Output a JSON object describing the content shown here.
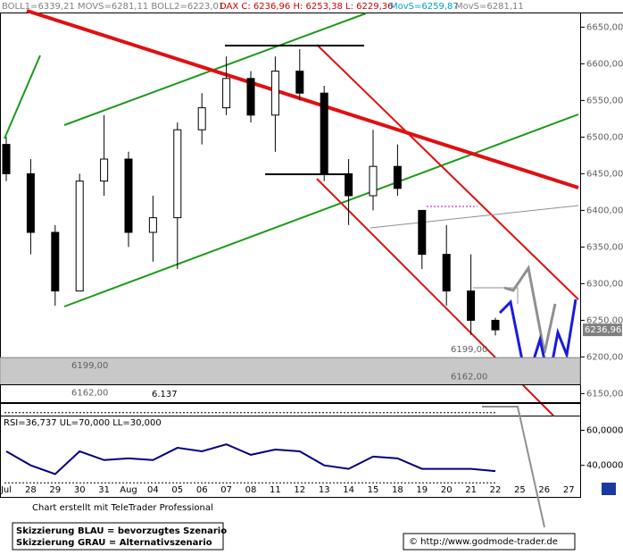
{
  "header": {
    "boll": "BOLL1=6339,21 MOVS=6281,11 BOLL2=6223,01",
    "dax": "DAX C: 6236,96 H: 6253,38 L: 6229,36",
    "movs1": "MovS=6259,87",
    "movs2": "MovS=6281,11"
  },
  "chart_data": [
    {
      "type": "candlestick",
      "categories": [
        "Jul",
        "28",
        "29",
        "30",
        "31",
        "Aug",
        "04",
        "05",
        "06",
        "07",
        "08",
        "11",
        "12",
        "13",
        "14",
        "15",
        "18",
        "19",
        "20",
        "21",
        "22",
        "25",
        "26",
        "27"
      ],
      "open": [
        6490,
        6450,
        6370,
        6290,
        6440,
        6470,
        6370,
        6390,
        6510,
        6540,
        6580,
        6530,
        6590,
        6560,
        6450,
        6420,
        6460,
        6400,
        6340,
        6290,
        6250,
        null,
        null,
        null
      ],
      "high": [
        6500,
        6470,
        6380,
        6450,
        6530,
        6480,
        6420,
        6520,
        6560,
        6610,
        6590,
        6610,
        6620,
        6570,
        6470,
        6510,
        6490,
        6400,
        6380,
        6340,
        6253.38,
        null,
        null,
        null
      ],
      "low": [
        6440,
        6340,
        6270,
        6290,
        6420,
        6350,
        6330,
        6320,
        6490,
        6530,
        6520,
        6480,
        6550,
        6440,
        6380,
        6400,
        6420,
        6320,
        6270,
        6230,
        6229.36,
        null,
        null,
        null
      ],
      "close": [
        6450,
        6370,
        6290,
        6440,
        6470,
        6370,
        6390,
        6510,
        6540,
        6580,
        6530,
        6590,
        6560,
        6450,
        6420,
        6460,
        6430,
        6340,
        6290,
        6250,
        6236.96,
        null,
        null,
        null
      ],
      "ylim": [
        6120,
        6670
      ],
      "yticks": [
        {
          "value": 6150,
          "label": "6150,00"
        },
        {
          "value": 6200,
          "label": "6200,00"
        },
        {
          "value": 6250,
          "label": "6250,00"
        },
        {
          "value": 6300,
          "label": "6300,00"
        },
        {
          "value": 6350,
          "label": "6350,00"
        },
        {
          "value": 6400,
          "label": "6400,00"
        },
        {
          "value": 6450,
          "label": "6450,00"
        },
        {
          "value": 6500,
          "label": "6500,00"
        },
        {
          "value": 6550,
          "label": "6550,00"
        },
        {
          "value": 6600,
          "label": "6600,00"
        },
        {
          "value": 6650,
          "label": "6650,00"
        }
      ],
      "levels": [
        {
          "value": 6199,
          "label": "6199,00"
        },
        {
          "value": 6162,
          "label": "6162,00"
        },
        {
          "value": 6137,
          "label": "6.137"
        }
      ],
      "last_price": {
        "value": 6236.96,
        "label": "6236,96"
      }
    },
    {
      "type": "line",
      "title": "RSI=36,737 UL=70,000 LL=30,000",
      "color": "#000080",
      "values": [
        48,
        40,
        35,
        48,
        43,
        44,
        43,
        50,
        48,
        52,
        46,
        49,
        48,
        40,
        38,
        45,
        44,
        38,
        38,
        38,
        36.737
      ],
      "ylim": [
        22,
        75
      ],
      "yticks": [
        {
          "value": 40,
          "label": "40,0000"
        },
        {
          "value": 60,
          "label": "60,0000"
        }
      ],
      "reference_lines": [
        70,
        30
      ]
    }
  ],
  "footer": {
    "credit": "Chart erstellt mit TeleTrader Professional",
    "legend_blue": "Skizzierung BLAU = bevorzugtes Szenario",
    "legend_gray": "Skizzierung GRAU = Alternativszenario",
    "url": "© http://www.godmode-trader.de"
  }
}
